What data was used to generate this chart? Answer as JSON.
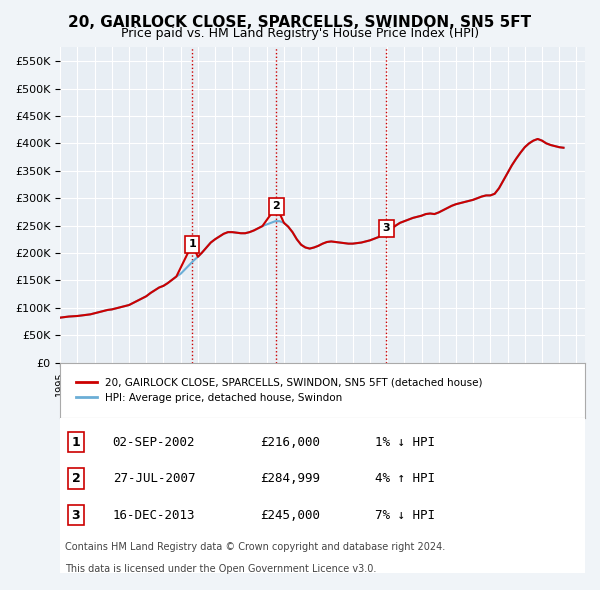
{
  "title": "20, GAIRLOCK CLOSE, SPARCELLS, SWINDON, SN5 5FT",
  "subtitle": "Price paid vs. HM Land Registry's House Price Index (HPI)",
  "legend_line1": "20, GAIRLOCK CLOSE, SPARCELLS, SWINDON, SN5 5FT (detached house)",
  "legend_line2": "HPI: Average price, detached house, Swindon",
  "footer1": "Contains HM Land Registry data © Crown copyright and database right 2024.",
  "footer2": "This data is licensed under the Open Government Licence v3.0.",
  "transactions": [
    {
      "num": 1,
      "date": "02-SEP-2002",
      "price": "£216,000",
      "change": "1% ↓ HPI"
    },
    {
      "num": 2,
      "date": "27-JUL-2007",
      "price": "£284,999",
      "change": "4% ↑ HPI"
    },
    {
      "num": 3,
      "date": "16-DEC-2013",
      "price": "£245,000",
      "change": "7% ↓ HPI"
    }
  ],
  "vline_years": [
    2002.67,
    2007.57,
    2013.96
  ],
  "hpi_color": "#6baed6",
  "price_color": "#cc0000",
  "vline_color": "#cc0000",
  "background_color": "#f0f4f8",
  "plot_bg_color": "#e8eef4",
  "ylim": [
    0,
    575000
  ],
  "yticks": [
    0,
    50000,
    100000,
    150000,
    200000,
    250000,
    300000,
    350000,
    400000,
    450000,
    500000,
    550000
  ],
  "hpi_data": {
    "years": [
      1995.0,
      1995.25,
      1995.5,
      1995.75,
      1996.0,
      1996.25,
      1996.5,
      1996.75,
      1997.0,
      1997.25,
      1997.5,
      1997.75,
      1998.0,
      1998.25,
      1998.5,
      1998.75,
      1999.0,
      1999.25,
      1999.5,
      1999.75,
      2000.0,
      2000.25,
      2000.5,
      2000.75,
      2001.0,
      2001.25,
      2001.5,
      2001.75,
      2002.0,
      2002.25,
      2002.5,
      2002.75,
      2003.0,
      2003.25,
      2003.5,
      2003.75,
      2004.0,
      2004.25,
      2004.5,
      2004.75,
      2005.0,
      2005.25,
      2005.5,
      2005.75,
      2006.0,
      2006.25,
      2006.5,
      2006.75,
      2007.0,
      2007.25,
      2007.5,
      2007.75,
      2008.0,
      2008.25,
      2008.5,
      2008.75,
      2009.0,
      2009.25,
      2009.5,
      2009.75,
      2010.0,
      2010.25,
      2010.5,
      2010.75,
      2011.0,
      2011.25,
      2011.5,
      2011.75,
      2012.0,
      2012.25,
      2012.5,
      2012.75,
      2013.0,
      2013.25,
      2013.5,
      2013.75,
      2014.0,
      2014.25,
      2014.5,
      2014.75,
      2015.0,
      2015.25,
      2015.5,
      2015.75,
      2016.0,
      2016.25,
      2016.5,
      2016.75,
      2017.0,
      2017.25,
      2017.5,
      2017.75,
      2018.0,
      2018.25,
      2018.5,
      2018.75,
      2019.0,
      2019.25,
      2019.5,
      2019.75,
      2020.0,
      2020.25,
      2020.5,
      2020.75,
      2021.0,
      2021.25,
      2021.5,
      2021.75,
      2022.0,
      2022.25,
      2022.5,
      2022.75,
      2023.0,
      2023.25,
      2023.5,
      2023.75,
      2024.0,
      2024.25
    ],
    "values": [
      82000,
      83000,
      84000,
      84500,
      85000,
      86000,
      87000,
      88000,
      90000,
      92000,
      94000,
      96000,
      97000,
      99000,
      101000,
      103000,
      105000,
      109000,
      113000,
      117000,
      121000,
      127000,
      132000,
      137000,
      140000,
      145000,
      151000,
      157000,
      162000,
      170000,
      178000,
      186000,
      193000,
      201000,
      210000,
      219000,
      225000,
      230000,
      235000,
      238000,
      238000,
      237000,
      236000,
      236000,
      238000,
      241000,
      245000,
      249000,
      252000,
      255000,
      258000,
      258000,
      255000,
      248000,
      238000,
      225000,
      215000,
      210000,
      208000,
      210000,
      213000,
      217000,
      220000,
      221000,
      220000,
      219000,
      218000,
      217000,
      217000,
      218000,
      219000,
      221000,
      223000,
      226000,
      229000,
      233000,
      238000,
      244000,
      250000,
      255000,
      258000,
      261000,
      264000,
      266000,
      268000,
      271000,
      272000,
      271000,
      274000,
      278000,
      282000,
      286000,
      289000,
      291000,
      293000,
      295000,
      297000,
      300000,
      303000,
      305000,
      305000,
      308000,
      318000,
      332000,
      346000,
      360000,
      372000,
      383000,
      393000,
      400000,
      405000,
      408000,
      405000,
      400000,
      397000,
      395000,
      393000,
      392000
    ]
  },
  "price_data": {
    "years": [
      1995.0,
      1995.25,
      1995.5,
      1995.75,
      1996.0,
      1996.25,
      1996.5,
      1996.75,
      1997.0,
      1997.25,
      1997.5,
      1997.75,
      1998.0,
      1998.25,
      1998.5,
      1998.75,
      1999.0,
      1999.25,
      1999.5,
      1999.75,
      2000.0,
      2000.25,
      2000.5,
      2000.75,
      2001.0,
      2001.25,
      2001.5,
      2001.75,
      2002.67,
      2003.0,
      2003.25,
      2003.5,
      2003.75,
      2004.0,
      2004.25,
      2004.5,
      2004.75,
      2005.0,
      2005.25,
      2005.5,
      2005.75,
      2006.0,
      2006.25,
      2006.5,
      2006.75,
      2007.57,
      2008.0,
      2008.25,
      2008.5,
      2008.75,
      2009.0,
      2009.25,
      2009.5,
      2009.75,
      2010.0,
      2010.25,
      2010.5,
      2010.75,
      2011.0,
      2011.25,
      2011.5,
      2011.75,
      2012.0,
      2012.25,
      2012.5,
      2012.75,
      2013.0,
      2013.25,
      2013.5,
      2013.96,
      2014.25,
      2014.5,
      2014.75,
      2015.0,
      2015.25,
      2015.5,
      2015.75,
      2016.0,
      2016.25,
      2016.5,
      2016.75,
      2017.0,
      2017.25,
      2017.5,
      2017.75,
      2018.0,
      2018.25,
      2018.5,
      2018.75,
      2019.0,
      2019.25,
      2019.5,
      2019.75,
      2020.0,
      2020.25,
      2020.5,
      2020.75,
      2021.0,
      2021.25,
      2021.5,
      2021.75,
      2022.0,
      2022.25,
      2022.5,
      2022.75,
      2023.0,
      2023.25,
      2023.5,
      2023.75,
      2024.0,
      2024.25
    ],
    "values": [
      82000,
      83000,
      84000,
      84500,
      85000,
      86000,
      87000,
      88000,
      90000,
      92000,
      94000,
      96000,
      97000,
      99000,
      101000,
      103000,
      105000,
      109000,
      113000,
      117000,
      121000,
      127000,
      132000,
      137000,
      140000,
      145000,
      151000,
      157000,
      216000,
      193000,
      201000,
      210000,
      219000,
      225000,
      230000,
      235000,
      238000,
      238000,
      237000,
      236000,
      236000,
      238000,
      241000,
      245000,
      249000,
      284999,
      255000,
      248000,
      238000,
      225000,
      215000,
      210000,
      208000,
      210000,
      213000,
      217000,
      220000,
      221000,
      220000,
      219000,
      218000,
      217000,
      217000,
      218000,
      219000,
      221000,
      223000,
      226000,
      229000,
      245000,
      244000,
      250000,
      255000,
      258000,
      261000,
      264000,
      266000,
      268000,
      271000,
      272000,
      271000,
      274000,
      278000,
      282000,
      286000,
      289000,
      291000,
      293000,
      295000,
      297000,
      300000,
      303000,
      305000,
      305000,
      308000,
      318000,
      332000,
      346000,
      360000,
      372000,
      383000,
      393000,
      400000,
      405000,
      408000,
      405000,
      400000,
      397000,
      395000,
      393000,
      392000
    ]
  }
}
